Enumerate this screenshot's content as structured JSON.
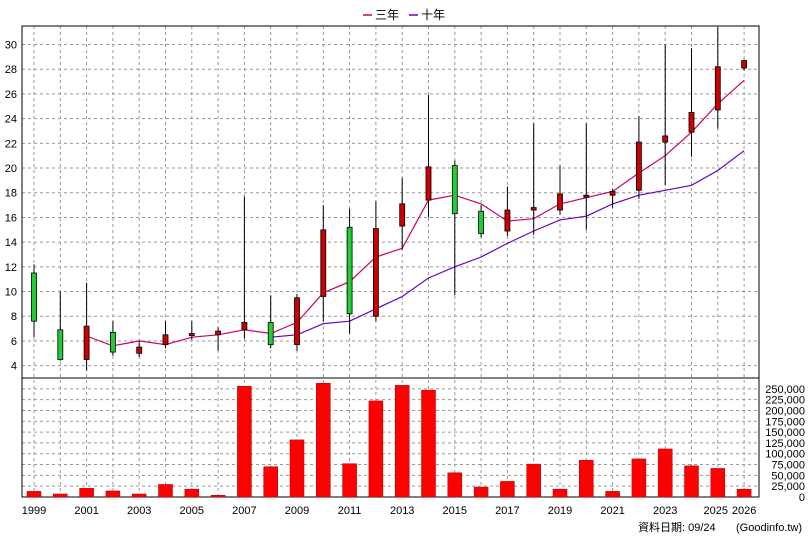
{
  "legend": [
    {
      "name": "三年",
      "color": "#cc0066"
    },
    {
      "name": "十年",
      "color": "#6600cc"
    }
  ],
  "footer": {
    "date_label": "資料日期: 09/24",
    "source": "(Goodinfo.tw)"
  },
  "colors": {
    "up": "#cc0000",
    "down": "#22cc33",
    "volume": "#ff0000",
    "grid": "#999999"
  },
  "chart_data": [
    {
      "type": "candlestick",
      "years": [
        1999,
        2000,
        2001,
        2002,
        2003,
        2004,
        2005,
        2006,
        2007,
        2008,
        2009,
        2010,
        2011,
        2012,
        2013,
        2014,
        2015,
        2016,
        2017,
        2018,
        2019,
        2020,
        2021,
        2022,
        2023,
        2024,
        2025,
        2026
      ],
      "candles": [
        {
          "year": 1999,
          "open": 11.5,
          "close": 7.6,
          "high": 12.2,
          "low": 6.3
        },
        {
          "year": 2000,
          "open": 6.9,
          "close": 4.5,
          "high": 10.0,
          "low": 4.4
        },
        {
          "year": 2001,
          "open": 4.5,
          "close": 7.2,
          "high": 10.7,
          "low": 3.6
        },
        {
          "year": 2002,
          "open": 6.7,
          "close": 5.1,
          "high": 7.6,
          "low": 4.8
        },
        {
          "year": 2003,
          "open": 5.0,
          "close": 5.5,
          "high": 6.0,
          "low": 4.7
        },
        {
          "year": 2004,
          "open": 5.7,
          "close": 6.5,
          "high": 7.6,
          "low": 5.4
        },
        {
          "year": 2005,
          "open": 6.5,
          "close": 6.6,
          "high": 7.6,
          "low": 6.1
        },
        {
          "year": 2006,
          "open": 6.5,
          "close": 6.8,
          "high": 7.1,
          "low": 5.2
        },
        {
          "year": 2007,
          "open": 6.9,
          "close": 7.5,
          "high": 17.7,
          "low": 6.2
        },
        {
          "year": 2008,
          "open": 7.5,
          "close": 5.7,
          "high": 9.7,
          "low": 5.4
        },
        {
          "year": 2009,
          "open": 5.7,
          "close": 9.5,
          "high": 9.8,
          "low": 5.2
        },
        {
          "year": 2010,
          "open": 9.6,
          "close": 15.0,
          "high": 17.0,
          "low": 7.6
        },
        {
          "year": 2011,
          "open": 15.2,
          "close": 8.2,
          "high": 16.7,
          "low": 6.6
        },
        {
          "year": 2012,
          "open": 8.0,
          "close": 15.1,
          "high": 17.3,
          "low": 7.6
        },
        {
          "year": 2013,
          "open": 15.3,
          "close": 17.1,
          "high": 19.2,
          "low": 13.4
        },
        {
          "year": 2014,
          "open": 17.4,
          "close": 20.1,
          "high": 25.9,
          "low": 16.0
        },
        {
          "year": 2015,
          "open": 20.2,
          "close": 16.3,
          "high": 20.6,
          "low": 9.7
        },
        {
          "year": 2016,
          "open": 16.5,
          "close": 14.7,
          "high": 17.0,
          "low": 14.4
        },
        {
          "year": 2017,
          "open": 14.9,
          "close": 16.6,
          "high": 18.5,
          "low": 14.5
        },
        {
          "year": 2018,
          "open": 16.6,
          "close": 16.8,
          "high": 23.6,
          "low": 14.6
        },
        {
          "year": 2019,
          "open": 16.6,
          "close": 17.9,
          "high": 20.2,
          "low": 16.2
        },
        {
          "year": 2020,
          "open": 17.7,
          "close": 17.8,
          "high": 23.6,
          "low": 15.0
        },
        {
          "year": 2021,
          "open": 17.8,
          "close": 18.1,
          "high": 18.3,
          "low": 16.8
        },
        {
          "year": 2022,
          "open": 18.2,
          "close": 22.1,
          "high": 24.2,
          "low": 17.5
        },
        {
          "year": 2023,
          "open": 22.1,
          "close": 22.6,
          "high": 30.0,
          "low": 18.6
        },
        {
          "year": 2024,
          "open": 22.9,
          "close": 24.5,
          "high": 29.7,
          "low": 20.9
        },
        {
          "year": 2025,
          "open": 24.7,
          "close": 28.2,
          "high": 31.4,
          "low": 23.2
        },
        {
          "year": 2026,
          "open": 28.1,
          "close": 28.7,
          "high": 28.8,
          "low": 27.9
        }
      ],
      "ma_series": [
        {
          "name": "三年",
          "color": "#cc0066",
          "start_year": 2001,
          "values": [
            6.4,
            5.6,
            6.0,
            5.7,
            6.3,
            6.5,
            6.9,
            6.6,
            7.5,
            9.9,
            10.8,
            12.8,
            13.5,
            17.4,
            17.8,
            17.1,
            15.7,
            15.9,
            17.1,
            17.6,
            18.1,
            19.6,
            21.0,
            22.9,
            25.2,
            27.1
          ]
        },
        {
          "name": "十年",
          "color": "#6600cc",
          "start_year": 2008,
          "values": [
            6.3,
            6.5,
            7.4,
            7.6,
            8.6,
            9.6,
            11.1,
            12.0,
            12.8,
            13.9,
            14.9,
            15.8,
            16.1,
            17.1,
            17.8,
            18.2,
            18.6,
            19.8,
            21.4
          ]
        }
      ],
      "ylim": [
        3,
        31.5
      ],
      "yticks": [
        4,
        6,
        8,
        10,
        12,
        14,
        16,
        18,
        20,
        22,
        24,
        26,
        28,
        30
      ]
    },
    {
      "type": "bar",
      "categories": [
        1999,
        2000,
        2001,
        2002,
        2003,
        2004,
        2005,
        2006,
        2007,
        2008,
        2009,
        2010,
        2011,
        2012,
        2013,
        2014,
        2015,
        2016,
        2017,
        2018,
        2019,
        2020,
        2021,
        2022,
        2023,
        2024,
        2025,
        2026
      ],
      "values": [
        13000,
        7000,
        20000,
        14000,
        7000,
        29000,
        18000,
        4000,
        256000,
        70000,
        132000,
        263000,
        77000,
        222000,
        258000,
        247000,
        56000,
        23000,
        36000,
        76000,
        18000,
        85000,
        13000,
        88000,
        111000,
        72000,
        66000,
        18000
      ],
      "ylim": [
        0,
        275000
      ],
      "yticks": [
        0,
        25000,
        50000,
        75000,
        100000,
        125000,
        150000,
        175000,
        200000,
        225000,
        250000
      ],
      "ytick_labels": [
        "0",
        "25,000",
        "50,000",
        "75,000",
        "100,000",
        "125,000",
        "150,000",
        "175,000",
        "200,000",
        "225,000",
        "250,000"
      ],
      "xtick_labels": [
        "1999",
        "2001",
        "2003",
        "2005",
        "2007",
        "2009",
        "2011",
        "2013",
        "2015",
        "2017",
        "2019",
        "2021",
        "2023",
        "2025",
        "2026"
      ]
    }
  ]
}
